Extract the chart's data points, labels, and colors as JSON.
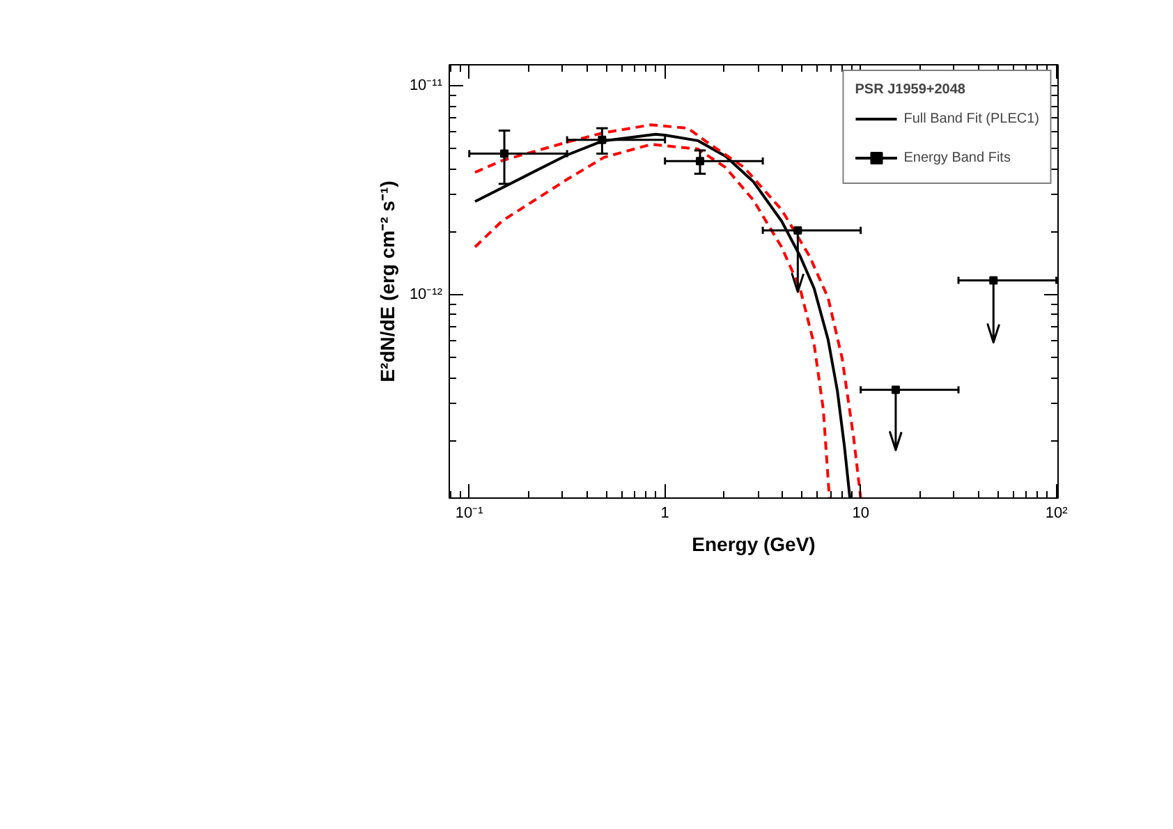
{
  "chart_data": {
    "type": "scatter",
    "xlabel": "Energy (GeV)",
    "ylabel": "E²dN/dE (erg cm⁻² s⁻¹)",
    "legend_title": "PSR J1959+2048",
    "log": "xy",
    "legend": "top right",
    "grid": false,
    "marker": "square",
    "xlim": [
      0.079,
      102
    ],
    "ylim": [
      1.06e-13,
      1.26e-11
    ],
    "xticks": [
      {
        "value": 0.1,
        "label": "10⁻¹"
      },
      {
        "value": 1,
        "label": "1"
      },
      {
        "value": 10,
        "label": "10"
      },
      {
        "value": 100,
        "label": "10²"
      }
    ],
    "yticks": [
      {
        "value": 1e-12,
        "label": "10⁻¹²"
      },
      {
        "value": 1e-11,
        "label": "10⁻¹¹"
      }
    ],
    "series": [
      {
        "name": "Full Band Fit (PLEC1)",
        "type": "line",
        "color": "#000000",
        "line_style": "solid",
        "marker": "none",
        "x": [
          0.107,
          0.316,
          0.477,
          0.895,
          1.0,
          1.47,
          2.04,
          2.83,
          3.94,
          4.9,
          5.78,
          6.81,
          7.6,
          8.26,
          8.81
        ],
        "values": [
          2.79e-12,
          4.66e-12,
          5.43e-12,
          5.86e-12,
          5.8e-12,
          5.46e-12,
          4.6e-12,
          3.47e-12,
          2.25e-12,
          1.53e-12,
          1.07e-12,
          6.1e-13,
          3.46e-13,
          1.87e-13,
          1.06e-13
        ]
      },
      {
        "type": "line",
        "color": "#ff0000",
        "line_style": "dashed",
        "marker": "none",
        "x": [
          0.107,
          0.147,
          0.316,
          0.488,
          0.849,
          1.31,
          1.64,
          2.54,
          3.94,
          5.47,
          6.81,
          8.04,
          9.2,
          10
        ],
        "values": [
          3.85e-12,
          4.38e-12,
          5.37e-12,
          5.96e-12,
          6.5e-12,
          6.26e-12,
          5.37e-12,
          4.06e-12,
          2.55e-12,
          1.53e-12,
          9.66e-13,
          4.95e-13,
          2.07e-13,
          1.06e-13
        ]
      },
      {
        "type": "line",
        "color": "#ff0000",
        "line_style": "dashed",
        "marker": "none",
        "x": [
          0.107,
          0.147,
          0.316,
          0.488,
          0.849,
          1.47,
          2.04,
          2.83,
          3.94,
          4.9,
          5.78,
          6.44,
          6.92
        ],
        "values": [
          1.69e-12,
          2.25e-12,
          3.56e-12,
          4.54e-12,
          5.24e-12,
          4.98e-12,
          4.06e-12,
          2.83e-12,
          1.69e-12,
          1.07e-12,
          5.78e-13,
          2.82e-13,
          1.06e-13
        ]
      },
      {
        "name": "Energy Band Fits",
        "color": "#000000",
        "x": [
          0.151,
          0.477,
          1.51
        ],
        "values": [
          4.73e-12,
          5.51e-12,
          4.36e-12
        ],
        "errors": [
          [
            3.39e-12,
            6.1e-12
          ],
          [
            4.73e-12,
            6.26e-12
          ],
          [
            3.79e-12,
            4.9e-12
          ]
        ],
        "xerrors": [
          [
            0.1,
            0.316
          ],
          [
            0.316,
            1.0
          ],
          [
            1.0,
            3.16
          ]
        ]
      },
      {
        "color": "#000000",
        "x": [
          4.77,
          15.1,
          47.7
        ],
        "values": [
          2.03e-12,
          3.5e-13,
          1.17e-12
        ],
        "errors": [
          [
            1.03e-12,
            2.03e-12
          ],
          [
            1.8e-13,
            3.5e-13
          ],
          [
            5.9e-13,
            1.17e-12
          ]
        ],
        "xerrors": [
          [
            3.16,
            10.0
          ],
          [
            10.0,
            31.6
          ],
          [
            31.6,
            100.0
          ]
        ]
      }
    ]
  }
}
